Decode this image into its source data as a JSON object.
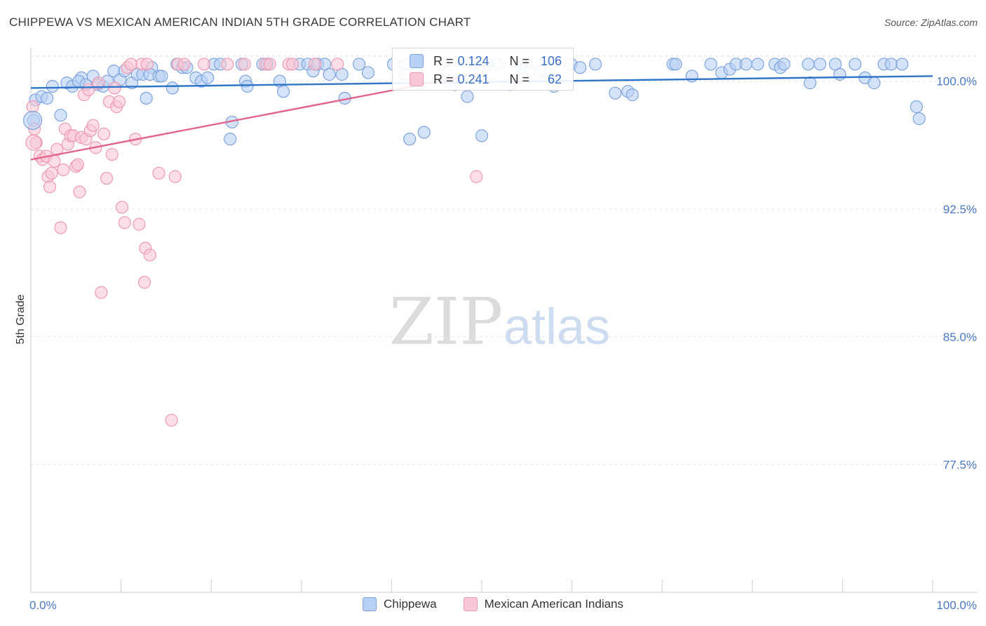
{
  "header": {
    "title": "CHIPPEWA VS MEXICAN AMERICAN INDIAN 5TH GRADE CORRELATION CHART",
    "source": "Source: ZipAtlas.com"
  },
  "watermark": {
    "zip": "ZIP",
    "atlas": "atlas"
  },
  "colors": {
    "blue_fill": "#b8d0f3",
    "blue_stroke": "#7ea3dc",
    "blue_line": "#2f74c9",
    "pink_fill": "#f8c8d6",
    "pink_stroke": "#ec9ab3",
    "pink_line": "#e2638d",
    "tick_text": "#4a78c2",
    "grid": "#e6e6e6"
  },
  "stats": {
    "r_label": "R =",
    "n_label": "N =",
    "chippewa": {
      "r": "0.124",
      "n": "106"
    },
    "mexican": {
      "r": "0.241",
      "n": "62"
    }
  },
  "chart_data": {
    "type": "scatter",
    "title": "CHIPPEWA VS MEXICAN AMERICAN INDIAN 5TH GRADE CORRELATION CHART",
    "xlabel": "",
    "ylabel": "5th Grade",
    "xlim": [
      0,
      100
    ],
    "ylim": [
      70.0,
      101.8
    ],
    "x_tick_labels": [
      "0.0%",
      "100.0%"
    ],
    "y_ticks": [
      {
        "value": 100.0,
        "label": "100.0%"
      },
      {
        "value": 92.5,
        "label": "92.5%"
      },
      {
        "value": 85.0,
        "label": "85.0%"
      },
      {
        "value": 77.5,
        "label": "77.5%"
      }
    ],
    "grid": true,
    "legend": {
      "position": "bottom",
      "entries": [
        "Chippewa",
        "Mexican American Indians"
      ]
    },
    "series": [
      {
        "name": "Chippewa",
        "color": "#7ea3dc",
        "trend": {
          "x": [
            0,
            100
          ],
          "y": [
            99.6,
            100.3
          ]
        },
        "points": [
          [
            0.3,
            97.7
          ],
          [
            0.5,
            98.9
          ],
          [
            1.2,
            99.1
          ],
          [
            1.8,
            99.0
          ],
          [
            2.4,
            99.7
          ],
          [
            3.3,
            98.0
          ],
          [
            4.0,
            99.9
          ],
          [
            4.6,
            99.7
          ],
          [
            5.6,
            100.2
          ],
          [
            5.3,
            100.0
          ],
          [
            6.1,
            99.8
          ],
          [
            6.9,
            100.3
          ],
          [
            7.4,
            99.8
          ],
          [
            8.0,
            99.7
          ],
          [
            8.5,
            100.0
          ],
          [
            9.2,
            100.6
          ],
          [
            9.9,
            100.1
          ],
          [
            10.4,
            100.6
          ],
          [
            11.2,
            99.9
          ],
          [
            11.8,
            100.4
          ],
          [
            12.4,
            100.4
          ],
          [
            12.8,
            99.0
          ],
          [
            13.4,
            100.8
          ],
          [
            13.2,
            100.4
          ],
          [
            14.2,
            100.3
          ],
          [
            14.5,
            100.3
          ],
          [
            15.7,
            99.6
          ],
          [
            16.2,
            101.0
          ],
          [
            16.8,
            100.8
          ],
          [
            17.3,
            100.8
          ],
          [
            18.3,
            100.2
          ],
          [
            18.9,
            100.0
          ],
          [
            19.6,
            100.2
          ],
          [
            20.3,
            101.0
          ],
          [
            21.0,
            101.0
          ],
          [
            22.3,
            97.6
          ],
          [
            22.1,
            96.6
          ],
          [
            23.4,
            101.0
          ],
          [
            23.8,
            100.0
          ],
          [
            24.0,
            99.7
          ],
          [
            25.7,
            101.0
          ],
          [
            26.2,
            101.0
          ],
          [
            27.6,
            100.0
          ],
          [
            28.0,
            99.4
          ],
          [
            29.8,
            101.0
          ],
          [
            30.7,
            101.0
          ],
          [
            31.3,
            100.6
          ],
          [
            31.8,
            101.0
          ],
          [
            32.6,
            101.0
          ],
          [
            33.1,
            100.4
          ],
          [
            34.5,
            100.4
          ],
          [
            34.8,
            99.0
          ],
          [
            36.4,
            101.0
          ],
          [
            37.4,
            100.5
          ],
          [
            40.2,
            101.0
          ],
          [
            41.5,
            100.4
          ],
          [
            41.7,
            101.0
          ],
          [
            42.0,
            96.6
          ],
          [
            42.8,
            100.4
          ],
          [
            43.6,
            97.0
          ],
          [
            45.6,
            101.0
          ],
          [
            46.2,
            100.0
          ],
          [
            47.0,
            99.8
          ],
          [
            48.4,
            99.1
          ],
          [
            49.0,
            101.0
          ],
          [
            49.6,
            100.8
          ],
          [
            50.0,
            96.8
          ],
          [
            50.8,
            101.0
          ],
          [
            51.8,
            101.0
          ],
          [
            53.1,
            99.8
          ],
          [
            54.3,
            100.8
          ],
          [
            54.9,
            101.0
          ],
          [
            56.4,
            100.6
          ],
          [
            57.6,
            100.4
          ],
          [
            58.0,
            99.7
          ],
          [
            59.9,
            101.0
          ],
          [
            60.9,
            100.8
          ],
          [
            62.6,
            101.0
          ],
          [
            64.8,
            99.3
          ],
          [
            66.2,
            99.4
          ],
          [
            66.7,
            99.2
          ],
          [
            71.2,
            101.0
          ],
          [
            71.5,
            101.0
          ],
          [
            73.3,
            100.3
          ],
          [
            75.4,
            101.0
          ],
          [
            76.6,
            100.5
          ],
          [
            77.5,
            100.7
          ],
          [
            78.2,
            101.0
          ],
          [
            79.3,
            101.0
          ],
          [
            80.6,
            101.0
          ],
          [
            82.5,
            101.0
          ],
          [
            83.1,
            100.8
          ],
          [
            83.5,
            101.0
          ],
          [
            86.2,
            101.0
          ],
          [
            86.4,
            99.9
          ],
          [
            87.5,
            101.0
          ],
          [
            89.2,
            101.0
          ],
          [
            89.7,
            100.4
          ],
          [
            91.4,
            101.0
          ],
          [
            92.5,
            100.2
          ],
          [
            93.5,
            99.9
          ],
          [
            94.6,
            101.0
          ],
          [
            95.4,
            101.0
          ],
          [
            96.6,
            101.0
          ],
          [
            98.2,
            98.5
          ],
          [
            98.5,
            97.8
          ]
        ]
      },
      {
        "name": "Mexican American Indians",
        "color": "#ec9ab3",
        "trend": {
          "x": [
            0,
            50.3
          ],
          "y": [
            95.4,
            100.5
          ]
        },
        "points": [
          [
            0.2,
            98.5
          ],
          [
            0.4,
            97.2
          ],
          [
            0.6,
            96.4
          ],
          [
            1.0,
            95.6
          ],
          [
            1.3,
            95.4
          ],
          [
            1.7,
            95.6
          ],
          [
            1.9,
            94.4
          ],
          [
            2.1,
            93.8
          ],
          [
            2.3,
            94.6
          ],
          [
            2.6,
            95.3
          ],
          [
            2.9,
            96.0
          ],
          [
            3.3,
            91.4
          ],
          [
            3.6,
            94.8
          ],
          [
            3.8,
            97.2
          ],
          [
            4.1,
            96.3
          ],
          [
            4.4,
            96.8
          ],
          [
            4.7,
            96.8
          ],
          [
            5.0,
            95.0
          ],
          [
            5.2,
            95.1
          ],
          [
            5.4,
            93.5
          ],
          [
            5.6,
            96.7
          ],
          [
            5.9,
            99.2
          ],
          [
            6.1,
            96.6
          ],
          [
            6.4,
            99.5
          ],
          [
            6.6,
            97.1
          ],
          [
            6.9,
            97.4
          ],
          [
            7.2,
            96.1
          ],
          [
            7.5,
            99.9
          ],
          [
            7.8,
            87.6
          ],
          [
            8.1,
            96.9
          ],
          [
            8.4,
            94.3
          ],
          [
            8.7,
            98.8
          ],
          [
            9.0,
            95.7
          ],
          [
            9.3,
            99.6
          ],
          [
            9.5,
            98.5
          ],
          [
            9.8,
            98.8
          ],
          [
            10.1,
            92.6
          ],
          [
            10.4,
            91.7
          ],
          [
            10.7,
            100.8
          ],
          [
            11.1,
            101.0
          ],
          [
            11.6,
            96.6
          ],
          [
            12.0,
            91.6
          ],
          [
            12.3,
            101.0
          ],
          [
            12.6,
            88.2
          ],
          [
            12.7,
            90.2
          ],
          [
            12.9,
            101.0
          ],
          [
            13.2,
            89.8
          ],
          [
            14.2,
            94.6
          ],
          [
            15.6,
            80.1
          ],
          [
            16.0,
            94.4
          ],
          [
            16.3,
            101.0
          ],
          [
            17.0,
            101.0
          ],
          [
            19.2,
            101.0
          ],
          [
            21.8,
            101.0
          ],
          [
            23.7,
            101.0
          ],
          [
            26.0,
            101.0
          ],
          [
            26.5,
            101.0
          ],
          [
            28.6,
            101.0
          ],
          [
            29.0,
            101.0
          ],
          [
            31.5,
            101.0
          ],
          [
            34.0,
            101.0
          ],
          [
            49.4,
            94.4
          ]
        ]
      }
    ]
  }
}
